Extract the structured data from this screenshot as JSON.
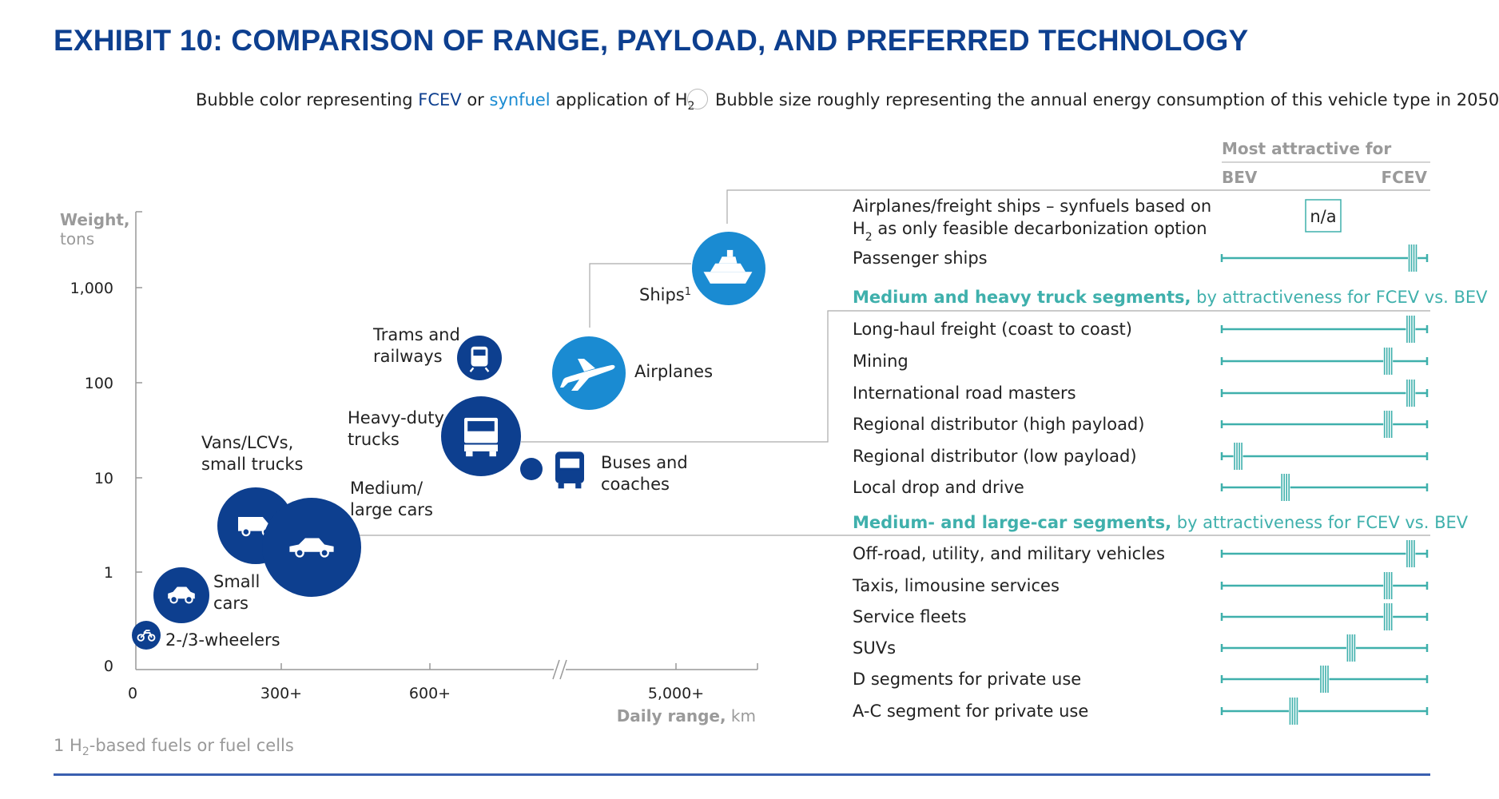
{
  "title": "EXHIBIT 10: COMPARISON OF RANGE, PAYLOAD, AND PREFERRED TECHNOLOGY",
  "legend": {
    "color_prefix": "Bubble color representing ",
    "color_fcev": "FCEV",
    "color_or": " or ",
    "color_synfuel": "synfuel",
    "color_suffix": " application of H",
    "color_sub": "2",
    "size_text": "Bubble size roughly representing the annual energy consumption of this vehicle type in 2050"
  },
  "colors": {
    "fcev": "#0d3f8f",
    "synfuel": "#1a8bd2",
    "teal": "#3fb0ac",
    "axis": "#9a9a9a"
  },
  "footnote": {
    "prefix": "1 H",
    "sub": "2",
    "suffix": "-based fuels or fuel cells"
  },
  "chart_data": {
    "type": "scatter",
    "ylabel_bold": "Weight,",
    "ylabel_unit": "tons",
    "xlabel_bold": "Daily range,",
    "xlabel_unit": " km",
    "yticks": [
      "1,000",
      "100",
      "10",
      "1",
      "0"
    ],
    "xticks": [
      "0",
      "300+",
      "600+",
      "5,000+"
    ],
    "y_scale": "log",
    "x_axis_break": "between 600+ and 5,000+",
    "bubbles": [
      {
        "label": [
          "2-/3-wheelers"
        ],
        "icon": "motorbike-icon",
        "type": "FCEV",
        "size": "small"
      },
      {
        "label": [
          "Small",
          "cars"
        ],
        "icon": "small-car-icon",
        "type": "FCEV",
        "size": "medium"
      },
      {
        "label": [
          "Vans/LCVs,",
          "small trucks"
        ],
        "icon": "van-icon",
        "type": "FCEV",
        "size": "large"
      },
      {
        "label": [
          "Medium/",
          "large cars"
        ],
        "icon": "sedan-icon",
        "type": "FCEV",
        "size": "very-large"
      },
      {
        "label": [
          "Heavy-duty",
          "trucks"
        ],
        "icon": "truck-icon",
        "type": "FCEV",
        "size": "large"
      },
      {
        "label": [
          "Trams and",
          "railways"
        ],
        "icon": "train-icon",
        "type": "FCEV",
        "size": "small"
      },
      {
        "label": [
          "Buses and",
          "coaches"
        ],
        "icon": "bus-icon",
        "type": "FCEV",
        "size": "small"
      },
      {
        "label": [
          "Airplanes"
        ],
        "icon": "airplane-icon",
        "type": "synfuel",
        "size": "large"
      },
      {
        "label": [
          "Ships"
        ],
        "label_sup": "1",
        "icon": "ship-icon",
        "type": "synfuel",
        "size": "large"
      }
    ],
    "attractiveness": {
      "header": "Most attractive for",
      "left": "BEV",
      "right": "FCEV",
      "groups": [
        {
          "title_bold": "",
          "title_rest": "",
          "rows": [
            {
              "label": [
                "Airplanes/freight ships – synfuels based on",
                "H₂ as only feasible decarbonization option"
              ],
              "na": "n/a"
            },
            {
              "label": [
                "Passenger ships"
              ],
              "value": 0.93
            }
          ]
        },
        {
          "title_bold": "Medium and heavy truck segments,",
          "title_rest": " by attractiveness for FCEV vs. BEV",
          "rows": [
            {
              "label": [
                "Long-haul freight (coast to coast)"
              ],
              "value": 0.92
            },
            {
              "label": [
                "Mining"
              ],
              "value": 0.81
            },
            {
              "label": [
                "International road masters"
              ],
              "value": 0.92
            },
            {
              "label": [
                "Regional distributor (high payload)"
              ],
              "value": 0.81
            },
            {
              "label": [
                "Regional distributor (low payload)"
              ],
              "value": 0.08
            },
            {
              "label": [
                "Local drop and drive"
              ],
              "value": 0.31
            }
          ]
        },
        {
          "title_bold": "Medium- and large-car segments,",
          "title_rest": " by attractiveness for FCEV vs. BEV",
          "rows": [
            {
              "label": [
                "Off-road, utility, and military vehicles"
              ],
              "value": 0.92
            },
            {
              "label": [
                "Taxis, limousine services"
              ],
              "value": 0.81
            },
            {
              "label": [
                "Service fleets"
              ],
              "value": 0.81
            },
            {
              "label": [
                "SUVs"
              ],
              "value": 0.63
            },
            {
              "label": [
                "D segments for private use"
              ],
              "value": 0.5
            },
            {
              "label": [
                "A-C segment for private use"
              ],
              "value": 0.35
            }
          ]
        }
      ]
    }
  }
}
